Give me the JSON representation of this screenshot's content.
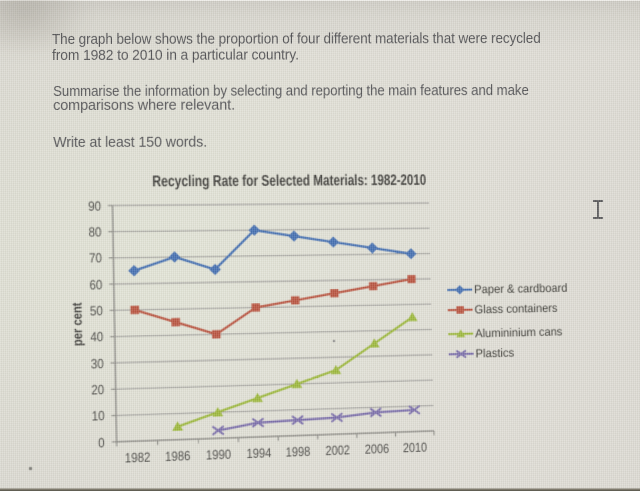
{
  "task": {
    "lines": [
      "The graph below shows the proportion of four different materials that were recycled",
      "from 1982 to 2010 in a particular country.",
      "Summarise the information by selecting and reporting the main features and make",
      "comparisons where relevant.",
      "Write at least 150 words."
    ]
  },
  "cursor": {
    "type": "text-ibeam"
  },
  "chart_data": {
    "type": "line",
    "title": "Recycling Rate for Selected Materials: 1982-2010",
    "ylabel": "per cent",
    "xlabel": "",
    "categories": [
      "1982",
      "1986",
      "1990",
      "1994",
      "1998",
      "2002",
      "2006",
      "2010"
    ],
    "ylim": [
      0,
      90
    ],
    "ytick_step": 10,
    "grid": "horizontal",
    "legend_position": "right",
    "series": [
      {
        "name": "Paper & cardboard",
        "color": "#3c68ad",
        "marker": "diamond",
        "values": [
          65,
          70,
          65,
          80,
          77.5,
          75,
          72.5,
          70
        ]
      },
      {
        "name": "Glass containers",
        "color": "#b54c38",
        "marker": "square",
        "values": [
          50,
          45,
          40,
          50,
          52.5,
          55,
          57.5,
          60
        ]
      },
      {
        "name": "Alumininium cans",
        "color": "#97b434",
        "marker": "triangle",
        "values": [
          null,
          5,
          10,
          15,
          20,
          25,
          35,
          45
        ]
      },
      {
        "name": "Plastics",
        "color": "#7467a6",
        "marker": "x-cross",
        "values": [
          null,
          null,
          3,
          5.5,
          6,
          6.5,
          8,
          8.5
        ]
      }
    ]
  }
}
